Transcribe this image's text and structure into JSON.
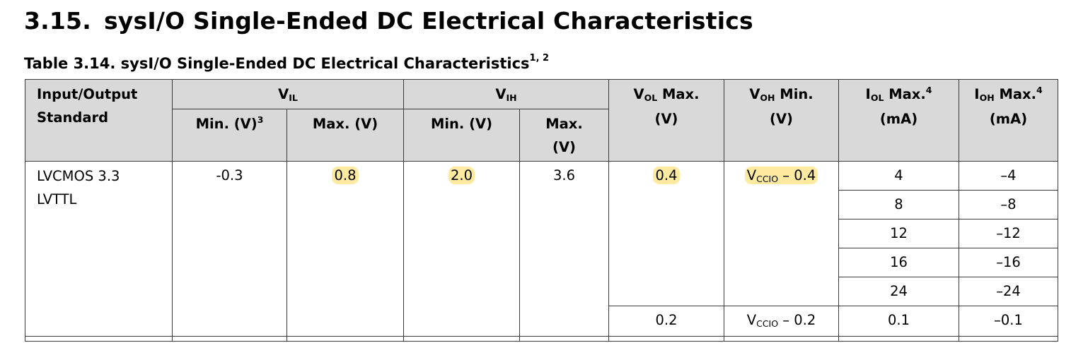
{
  "section": {
    "number": "3.15.",
    "title": "sysI/O Single-Ended DC Electrical Characteristics"
  },
  "caption": {
    "text": "Table 3.14. sysI/O Single-Ended DC Electrical Characteristics",
    "footnotes": "1, 2"
  },
  "header": {
    "standard_line1": "Input/Output",
    "standard_line2": "Standard",
    "vil_main": "V",
    "vil_sub": "IL",
    "vih_main": "V",
    "vih_sub": "IH",
    "vol_main": "V",
    "vol_sub": "OL",
    "vol_rest": " Max.",
    "vol_unit": "(V)",
    "voh_main": "V",
    "voh_sub": "OH",
    "voh_rest": " Min.",
    "voh_unit": "(V)",
    "iol_main": "I",
    "iol_sub": "OL",
    "iol_rest": " Max.",
    "iol_sup": "4",
    "iol_unit": "(mA)",
    "ioh_main": "I",
    "ioh_sub": "OH",
    "ioh_rest": " Max.",
    "ioh_sup": "4",
    "ioh_unit": "(mA)",
    "vil_min": "Min. (V)",
    "vil_min_sup": "3",
    "vil_max": "Max. (V)",
    "vih_min": "Min. (V)",
    "vih_max_line1": "Max.",
    "vih_max_line2": "(V)"
  },
  "rows": {
    "standard_line1": "LVCMOS 3.3",
    "standard_line2": "LVTTL",
    "vil_min": "-0.3",
    "vil_max": "0.8",
    "vih_min": "2.0",
    "vih_max": "3.6",
    "vol_a": "0.4",
    "voh_a_main": "V",
    "voh_a_sub": "CCIO",
    "voh_a_rest": " – 0.4",
    "vol_b": "0.2",
    "voh_b_main": "V",
    "voh_b_sub": "CCIO",
    "voh_b_rest": " – 0.2",
    "iol": [
      "4",
      "8",
      "12",
      "16",
      "24",
      "0.1"
    ],
    "ioh": [
      "–4",
      "–8",
      "–12",
      "–16",
      "–24",
      "–0.1"
    ]
  },
  "highlight_color": "#fdeaa0",
  "header_bg": "#d9d9d9"
}
